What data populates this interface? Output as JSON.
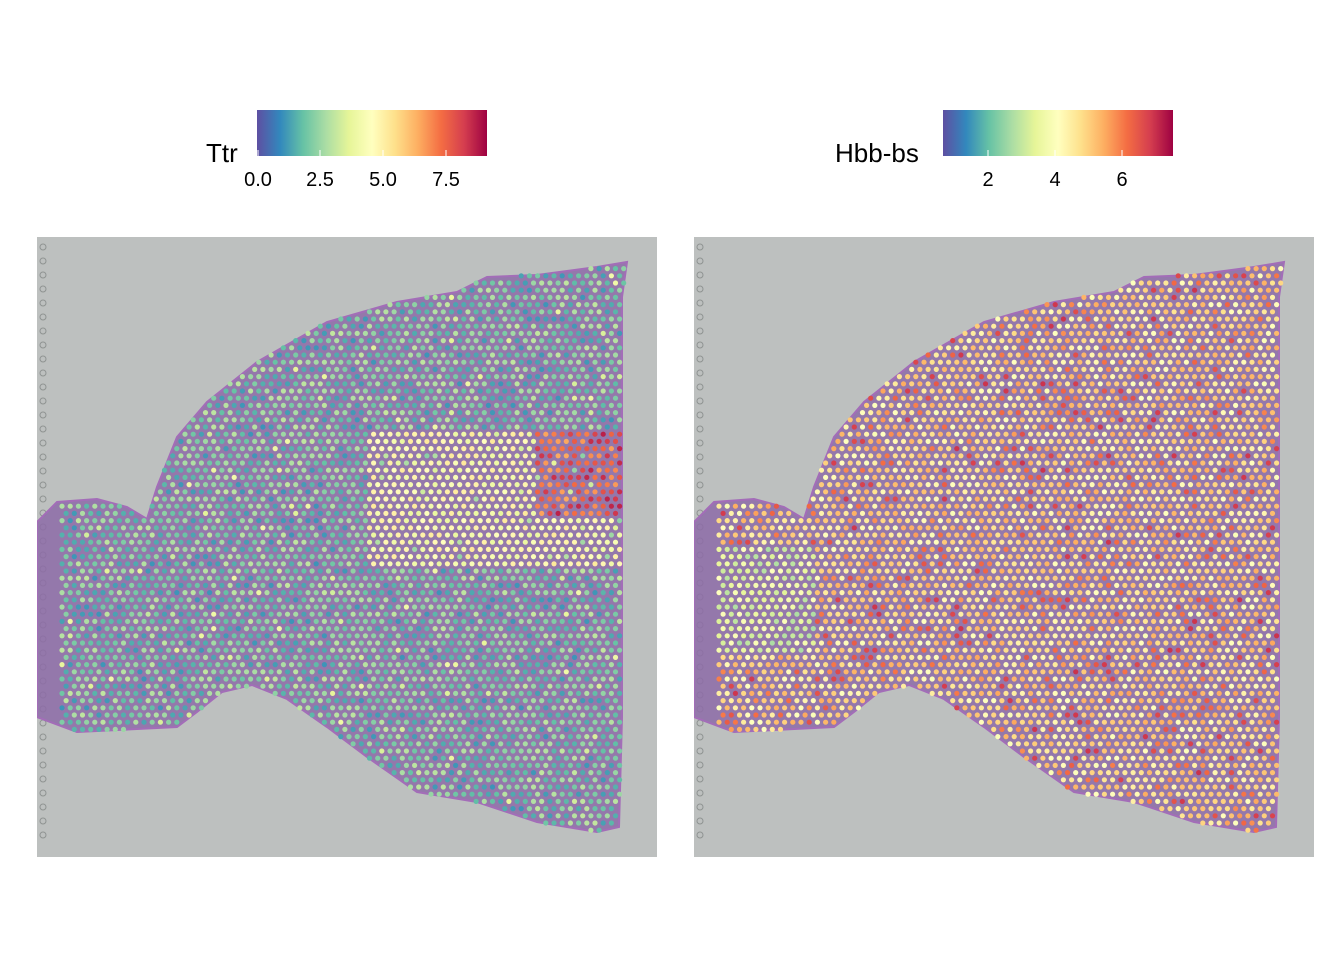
{
  "colors": {
    "background": "#ffffff",
    "slide_gray": "#bdc0bf",
    "tissue": "#8d6ba7",
    "tissue_edge": "#a36db8",
    "spectral_palette": [
      "#5e4fa2",
      "#3288bd",
      "#66c2a5",
      "#abdda4",
      "#e6f598",
      "#ffffbf",
      "#fee08b",
      "#fdae61",
      "#f46d43",
      "#d53e4f",
      "#9e0142"
    ]
  },
  "panels": [
    {
      "gene": "Ttr",
      "legend": {
        "title": "Ttr",
        "ticks": [
          "0.0",
          "2.5",
          "5.0",
          "7.5"
        ]
      },
      "expression_pattern": "low-background-high-right"
    },
    {
      "gene": "Hbb-bs",
      "legend": {
        "title": "Hbb-bs",
        "ticks": [
          "2",
          "4",
          "6"
        ]
      },
      "expression_pattern": "uniform-mid-high"
    }
  ]
}
